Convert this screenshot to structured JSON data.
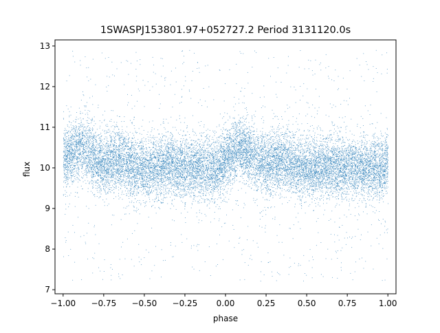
{
  "chart_data": {
    "type": "scatter",
    "title": "1SWASPJ153801.97+052727.2 Period 3131120.0s",
    "xlabel": "phase",
    "ylabel": "flux",
    "xlim": [
      -1.05,
      1.05
    ],
    "ylim": [
      6.9,
      13.15
    ],
    "x_ticks": [
      -1.0,
      -0.75,
      -0.5,
      -0.25,
      0.0,
      0.25,
      0.5,
      0.75,
      1.0
    ],
    "x_tick_labels": [
      "−1.00",
      "−0.75",
      "−0.50",
      "−0.25",
      "0.00",
      "0.25",
      "0.50",
      "0.75",
      "1.00"
    ],
    "y_ticks": [
      7,
      8,
      9,
      10,
      11,
      12,
      13
    ],
    "y_tick_labels": [
      "7",
      "8",
      "9",
      "10",
      "11",
      "12",
      "13"
    ],
    "grid": false,
    "legend": "none",
    "marker_color": "#1f77b4",
    "series": [
      {
        "phase_range": [
          -1.0,
          1.0
        ],
        "flux_center": 10.1,
        "flux_core_spread": [
          9.0,
          11.3
        ],
        "flux_outlier_range": [
          7.2,
          12.9
        ],
        "values": [
          [
            -1.0,
            10.2
          ],
          [
            -0.95,
            10.4
          ],
          [
            -0.9,
            10.5
          ],
          [
            -0.85,
            10.4
          ],
          [
            -0.8,
            10.2
          ],
          [
            -0.75,
            10.1
          ],
          [
            -0.7,
            10.2
          ],
          [
            -0.65,
            10.2
          ],
          [
            -0.6,
            10.1
          ],
          [
            -0.55,
            10.0
          ],
          [
            -0.5,
            10.0
          ],
          [
            -0.45,
            10.0
          ],
          [
            -0.4,
            10.0
          ],
          [
            -0.35,
            10.1
          ],
          [
            -0.3,
            10.0
          ],
          [
            -0.25,
            10.0
          ],
          [
            -0.2,
            10.0
          ],
          [
            -0.15,
            10.0
          ],
          [
            -0.1,
            10.0
          ],
          [
            -0.05,
            10.0
          ],
          [
            0.0,
            10.2
          ],
          [
            0.05,
            10.4
          ],
          [
            0.1,
            10.5
          ],
          [
            0.15,
            10.4
          ],
          [
            0.2,
            10.2
          ],
          [
            0.25,
            10.1
          ],
          [
            0.3,
            10.2
          ],
          [
            0.35,
            10.2
          ],
          [
            0.4,
            10.1
          ],
          [
            0.45,
            10.0
          ],
          [
            0.5,
            10.0
          ],
          [
            0.55,
            10.0
          ],
          [
            0.6,
            10.0
          ],
          [
            0.65,
            10.1
          ],
          [
            0.7,
            10.0
          ],
          [
            0.75,
            10.0
          ],
          [
            0.8,
            10.0
          ],
          [
            0.85,
            10.0
          ],
          [
            0.9,
            10.0
          ],
          [
            0.95,
            10.0
          ],
          [
            1.0,
            10.2
          ]
        ]
      }
    ]
  }
}
